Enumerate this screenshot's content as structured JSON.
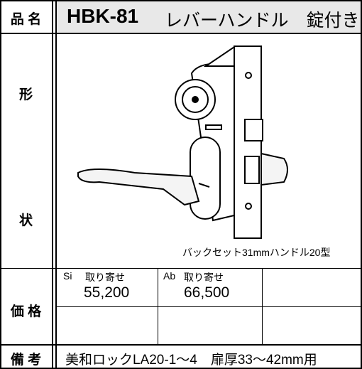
{
  "header": {
    "label": "品 名",
    "model": "HBK-81",
    "name": "レバーハンドル　錠付き"
  },
  "shape": {
    "label_top": "形",
    "label_bottom": "状",
    "caption": "バックセット31mmハンドル20型"
  },
  "price": {
    "label": "価 格",
    "items": [
      {
        "finish": "Si",
        "note": "取り寄せ",
        "price": "55,200"
      },
      {
        "finish": "Ab",
        "note": "取り寄せ",
        "price": "66,500"
      }
    ]
  },
  "remarks": {
    "label": "備 考",
    "text": "美和ロックLA20-1〜4　扉厚33〜42mm用"
  }
}
